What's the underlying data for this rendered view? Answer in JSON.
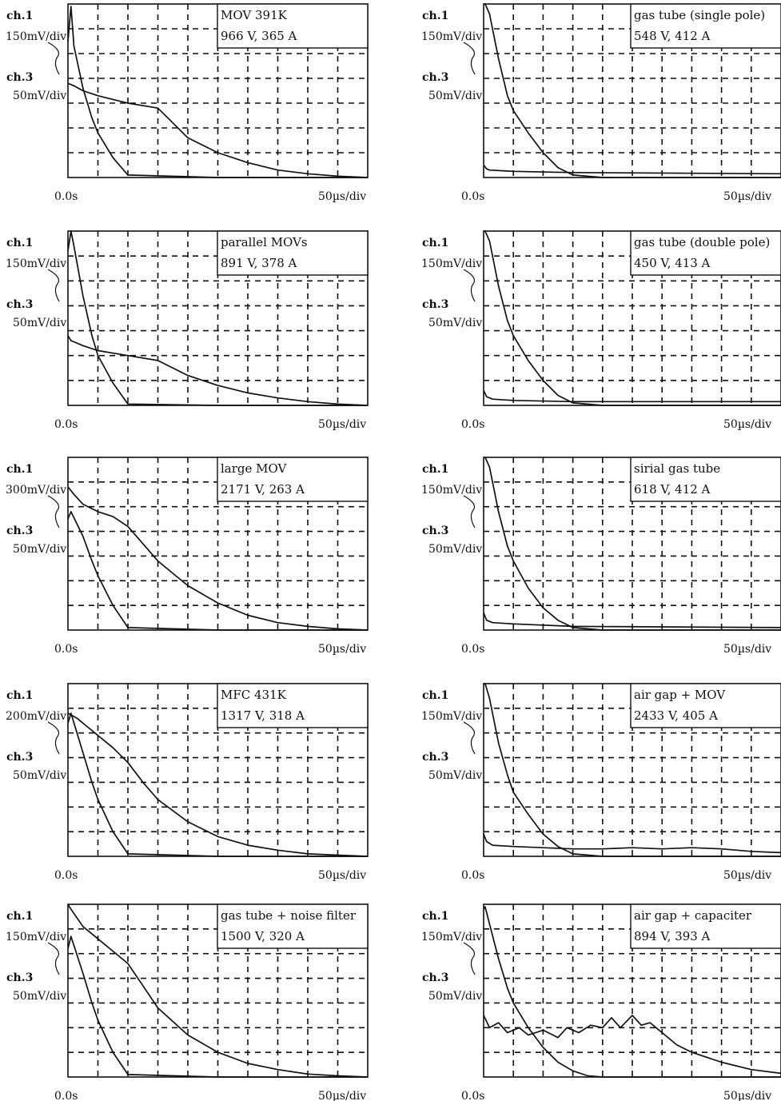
{
  "chart_data": [
    {
      "type": "line",
      "panel": "MOV 391K",
      "readout": "966 V, 365 A",
      "ch1_label": "ch.1",
      "ch1_scale": "150mV/div",
      "ch3_label": "ch.3",
      "ch3_scale": "50mV/div",
      "x_start_label": "0.0s",
      "x_div_label": "50µs/div",
      "series": [
        {
          "name": "ch.1",
          "x": [
            0,
            0.1,
            0.2,
            0.5,
            0.8,
            1,
            1.5,
            2,
            5,
            10
          ],
          "y": [
            5.5,
            6.9,
            5.3,
            3.6,
            2.4,
            1.8,
            0.8,
            0.1,
            0,
            0
          ]
        },
        {
          "name": "ch.3",
          "x": [
            0,
            0.2,
            0.5,
            1,
            2,
            3,
            3.5,
            4,
            5,
            6,
            7,
            8,
            9,
            10
          ],
          "y": [
            3.8,
            3.7,
            3.5,
            3.3,
            3.0,
            2.8,
            2.2,
            1.6,
            1.0,
            0.6,
            0.3,
            0.15,
            0.05,
            0
          ]
        }
      ],
      "xlim": [
        0,
        10
      ],
      "ylim": [
        0,
        7
      ]
    },
    {
      "type": "line",
      "panel": "gas tube (single pole)",
      "readout": "548 V, 412 A",
      "ch1_label": "ch.1",
      "ch1_scale": "150mV/div",
      "ch3_label": "ch.3",
      "ch3_scale": "50mV/div",
      "x_start_label": "0.0s",
      "x_div_label": "50µs/div",
      "series": [
        {
          "name": "ch.1",
          "x": [
            0,
            0.05,
            0.2,
            0.5,
            0.8,
            1,
            1.5,
            2,
            2.5,
            3,
            4,
            10
          ],
          "y": [
            7,
            7,
            6.6,
            4.8,
            3.3,
            2.7,
            1.8,
            1.0,
            0.4,
            0.1,
            0,
            0
          ]
        },
        {
          "name": "ch.3",
          "x": [
            0,
            0.1,
            0.2,
            1,
            3,
            10
          ],
          "y": [
            0.5,
            0.35,
            0.3,
            0.25,
            0.2,
            0.15
          ]
        }
      ],
      "xlim": [
        0,
        10
      ],
      "ylim": [
        0,
        7
      ]
    },
    {
      "type": "line",
      "panel": "parallel MOVs",
      "readout": "891 V, 378 A",
      "ch1_label": "ch.1",
      "ch1_scale": "150mV/div",
      "ch3_label": "ch.3",
      "ch3_scale": "50mV/div",
      "x_start_label": "0.0s",
      "x_div_label": "50µs/div",
      "series": [
        {
          "name": "ch.1",
          "x": [
            0,
            0.1,
            0.2,
            0.5,
            0.8,
            1,
            1.5,
            2,
            5,
            10
          ],
          "y": [
            6.2,
            7,
            6.4,
            4.4,
            2.8,
            2.0,
            0.9,
            0.05,
            0,
            0
          ]
        },
        {
          "name": "ch.3",
          "x": [
            0,
            0.1,
            0.5,
            1,
            2,
            3,
            4,
            5,
            6,
            7,
            8,
            9,
            10
          ],
          "y": [
            2.8,
            2.6,
            2.4,
            2.2,
            2.0,
            1.8,
            1.2,
            0.8,
            0.5,
            0.3,
            0.15,
            0.05,
            0
          ]
        }
      ],
      "xlim": [
        0,
        10
      ],
      "ylim": [
        0,
        7
      ]
    },
    {
      "type": "line",
      "panel": "gas tube (double pole)",
      "readout": "450 V, 413 A",
      "ch1_label": "ch.1",
      "ch1_scale": "150mV/div",
      "ch3_label": "ch.3",
      "ch3_scale": "50mV/div",
      "x_start_label": "0.0s",
      "x_div_label": "50µs/div",
      "series": [
        {
          "name": "ch.1",
          "x": [
            0,
            0.05,
            0.2,
            0.5,
            0.8,
            1,
            1.5,
            2,
            2.5,
            3,
            4,
            10
          ],
          "y": [
            7,
            7,
            6.6,
            4.8,
            3.4,
            2.8,
            1.8,
            1.0,
            0.4,
            0.1,
            0,
            0
          ]
        },
        {
          "name": "ch.3",
          "x": [
            0,
            0.1,
            0.3,
            1,
            3,
            10
          ],
          "y": [
            0.6,
            0.35,
            0.25,
            0.2,
            0.15,
            0.15
          ]
        }
      ],
      "xlim": [
        0,
        10
      ],
      "ylim": [
        0,
        7
      ]
    },
    {
      "type": "line",
      "panel": "large MOV",
      "readout": "2171 V, 263 A",
      "ch1_label": "ch.1",
      "ch1_scale": "300mV/div",
      "ch3_label": "ch.3",
      "ch3_scale": "50mV/div",
      "x_start_label": "0.0s",
      "x_div_label": "50µs/div",
      "series": [
        {
          "name": "ch.1",
          "x": [
            0,
            0.2,
            0.5,
            1,
            1.5,
            2,
            3,
            4,
            5,
            6,
            7,
            8,
            9,
            10
          ],
          "y": [
            5.8,
            5.5,
            5.1,
            4.8,
            4.6,
            4.2,
            2.8,
            1.8,
            1.1,
            0.6,
            0.3,
            0.15,
            0.05,
            0
          ]
        },
        {
          "name": "ch.3",
          "x": [
            0,
            0.1,
            0.5,
            0.8,
            1,
            1.5,
            2,
            5,
            10
          ],
          "y": [
            4.5,
            4.8,
            3.8,
            2.8,
            2.2,
            1.0,
            0.1,
            0,
            0
          ]
        }
      ],
      "xlim": [
        0,
        10
      ],
      "ylim": [
        0,
        7
      ]
    },
    {
      "type": "line",
      "panel": "sirial gas tube",
      "readout": "618 V, 412 A",
      "ch1_label": "ch.1",
      "ch1_scale": "150mV/div",
      "ch3_label": "ch.3",
      "ch3_scale": "50mV/div",
      "x_start_label": "0.0s",
      "x_div_label": "50µs/div",
      "series": [
        {
          "name": "ch.1",
          "x": [
            0,
            0.05,
            0.2,
            0.5,
            0.8,
            1,
            1.5,
            2,
            2.5,
            3,
            4,
            10
          ],
          "y": [
            7,
            7,
            6.6,
            4.8,
            3.4,
            2.8,
            1.7,
            0.9,
            0.4,
            0.1,
            0,
            0
          ]
        },
        {
          "name": "ch.3",
          "x": [
            0,
            0.1,
            0.3,
            1,
            3,
            10
          ],
          "y": [
            0.7,
            0.4,
            0.3,
            0.25,
            0.15,
            0.1
          ]
        }
      ],
      "xlim": [
        0,
        10
      ],
      "ylim": [
        0,
        7
      ]
    },
    {
      "type": "line",
      "panel": "MFC 431K",
      "readout": "1317 V, 318 A",
      "ch1_label": "ch.1",
      "ch1_scale": "200mV/div",
      "ch3_label": "ch.3",
      "ch3_scale": "50mV/div",
      "x_start_label": "0.0s",
      "x_div_label": "50µs/div",
      "series": [
        {
          "name": "ch.1",
          "x": [
            0,
            0.3,
            0.6,
            1,
            1.5,
            2,
            2.5,
            3,
            4,
            5,
            6,
            7,
            8,
            9,
            10
          ],
          "y": [
            5.8,
            5.6,
            5.3,
            4.9,
            4.4,
            3.8,
            3.0,
            2.3,
            1.4,
            0.8,
            0.45,
            0.25,
            0.1,
            0.05,
            0
          ]
        },
        {
          "name": "ch.3",
          "x": [
            0,
            0.1,
            0.5,
            0.8,
            1,
            1.5,
            2,
            5,
            10
          ],
          "y": [
            5.4,
            5.8,
            4.2,
            3.0,
            2.3,
            1.0,
            0.1,
            0,
            0
          ]
        }
      ],
      "xlim": [
        0,
        10
      ],
      "ylim": [
        0,
        7
      ]
    },
    {
      "type": "line",
      "panel": "air gap + MOV",
      "readout": "2433 V, 405 A",
      "ch1_label": "ch.1",
      "ch1_scale": "150mV/div",
      "ch3_label": "ch.3",
      "ch3_scale": "50mV/div",
      "x_start_label": "0.0s",
      "x_div_label": "50µs/div",
      "series": [
        {
          "name": "ch.1",
          "x": [
            0,
            0.05,
            0.2,
            0.5,
            0.8,
            1,
            1.5,
            2,
            2.5,
            3,
            4,
            10
          ],
          "y": [
            7,
            7,
            6.4,
            4.6,
            3.3,
            2.6,
            1.7,
            0.9,
            0.4,
            0.1,
            0,
            0
          ]
        },
        {
          "name": "ch.3",
          "x": [
            0,
            0.1,
            0.3,
            1,
            2,
            3,
            4,
            5,
            6,
            7,
            8,
            9,
            10
          ],
          "y": [
            0.9,
            0.6,
            0.45,
            0.4,
            0.35,
            0.3,
            0.3,
            0.35,
            0.3,
            0.35,
            0.3,
            0.2,
            0.15
          ]
        }
      ],
      "xlim": [
        0,
        10
      ],
      "ylim": [
        0,
        7
      ]
    },
    {
      "type": "line",
      "panel": "gas tube + noise filter",
      "readout": "1500 V, 320 A",
      "ch1_label": "ch.1",
      "ch1_scale": "150mV/div",
      "ch3_label": "ch.3",
      "ch3_scale": "50mV/div",
      "x_start_label": "0.0s",
      "x_div_label": "50µs/div",
      "series": [
        {
          "name": "ch.1",
          "x": [
            0,
            0.1,
            0.5,
            1,
            1.5,
            2,
            2.5,
            3,
            4,
            5,
            6,
            7,
            8,
            9,
            10
          ],
          "y": [
            7,
            6.8,
            6.1,
            5.6,
            5.1,
            4.6,
            3.7,
            2.8,
            1.7,
            1.0,
            0.55,
            0.3,
            0.12,
            0.05,
            0
          ]
        },
        {
          "name": "ch.3",
          "x": [
            0,
            0.1,
            0.5,
            0.8,
            1,
            1.5,
            2,
            5,
            10
          ],
          "y": [
            5.2,
            5.7,
            4.2,
            3.0,
            2.3,
            1.0,
            0.1,
            0,
            0
          ]
        }
      ],
      "xlim": [
        0,
        10
      ],
      "ylim": [
        0,
        7
      ]
    },
    {
      "type": "line",
      "panel": "air gap + capaciter",
      "readout": "894 V, 393 A",
      "ch1_label": "ch.1",
      "ch1_scale": "150mV/div",
      "ch3_label": "ch.3",
      "ch3_scale": "50mV/div",
      "x_start_label": "0.0s",
      "x_div_label": "50µs/div",
      "series": [
        {
          "name": "ch.1",
          "x": [
            0,
            0.05,
            0.2,
            0.5,
            0.8,
            1,
            1.5,
            2,
            2.5,
            3,
            3.5,
            4,
            10
          ],
          "y": [
            6.8,
            6.9,
            6.2,
            4.8,
            3.6,
            3.0,
            2.0,
            1.2,
            0.6,
            0.25,
            0.05,
            0,
            0
          ]
        },
        {
          "name": "ch.3",
          "x": [
            0,
            0.2,
            0.5,
            0.8,
            1.2,
            1.5,
            2,
            2.5,
            2.8,
            3.2,
            3.6,
            4,
            4.3,
            4.6,
            5,
            5.3,
            5.6,
            6,
            6.5,
            7,
            8,
            9,
            10
          ],
          "y": [
            2.5,
            2.0,
            2.2,
            1.8,
            2.0,
            1.7,
            1.9,
            1.6,
            2.0,
            1.8,
            2.1,
            2.0,
            2.4,
            2.0,
            2.5,
            2.1,
            2.2,
            1.8,
            1.3,
            1.0,
            0.6,
            0.3,
            0.15
          ]
        }
      ],
      "xlim": [
        0,
        10
      ],
      "ylim": [
        0,
        7
      ]
    }
  ]
}
